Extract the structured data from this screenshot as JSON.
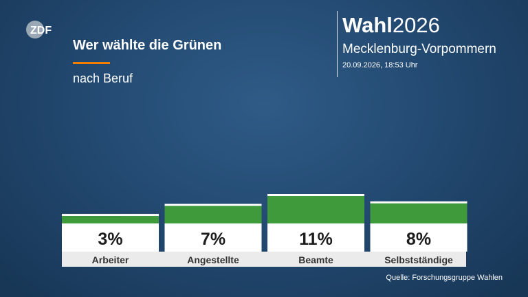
{
  "brand": {
    "logo": "ZDF",
    "name_bold": "Wahl",
    "name_year": "2026",
    "region": "Mecklenburg-Vorpommern",
    "datetime": "20.09.2026, 18:53 Uhr"
  },
  "header": {
    "title": "Wer wählte die Grünen",
    "subtitle": "nach Beruf"
  },
  "colors": {
    "bar": "#3f9a3c",
    "accent": "#f07d00",
    "label_box": "#ffffff",
    "category_strip": "#ebebeb"
  },
  "chart_data": {
    "type": "bar",
    "title": "Wer wählte die Grünen",
    "subtitle": "nach Beruf",
    "categories": [
      "Arbeiter",
      "Angestellte",
      "Beamte",
      "Selbstständige"
    ],
    "values": [
      3,
      7,
      11,
      8
    ],
    "value_labels": [
      "3%",
      "7%",
      "11%",
      "8%"
    ],
    "unit": "%",
    "ylim": [
      0,
      11
    ]
  },
  "footer": {
    "source": "Quelle: Forschungsgruppe Wahlen"
  }
}
